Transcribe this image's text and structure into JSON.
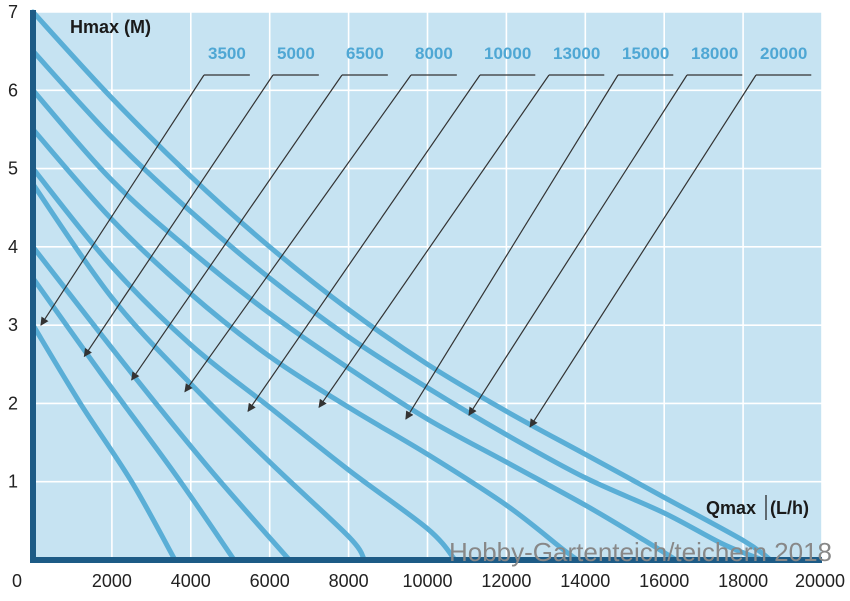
{
  "chart_data": {
    "type": "line",
    "title": "",
    "xlabel": "Qmax",
    "xlabel_unit": "(L/h)",
    "ylabel": "Hmax (M)",
    "xlim": [
      0,
      20000
    ],
    "ylim": [
      0,
      7
    ],
    "x_ticks": [
      0,
      2000,
      4000,
      6000,
      8000,
      10000,
      12000,
      14000,
      16000,
      18000,
      20000
    ],
    "y_ticks": [
      1,
      2,
      3,
      4,
      5,
      6,
      7
    ],
    "grid": true,
    "legend": "top, with leader arrows",
    "colors": {
      "background": "#c6e3f2",
      "curve": "#5aaed6",
      "label": "#4fa7d4",
      "axis": "#1d5b86",
      "grid": "#ffffff",
      "arrow": "#333333"
    },
    "series": [
      {
        "name": "3500",
        "points": [
          [
            0,
            3.0
          ],
          [
            1200,
            2.0
          ],
          [
            2500,
            1.0
          ],
          [
            3600,
            0
          ]
        ]
      },
      {
        "name": "5000",
        "points": [
          [
            0,
            3.6
          ],
          [
            1700,
            2.4
          ],
          [
            3600,
            1.1
          ],
          [
            5100,
            0
          ]
        ]
      },
      {
        "name": "6500",
        "points": [
          [
            0,
            4.0
          ],
          [
            2400,
            2.45
          ],
          [
            4500,
            1.15
          ],
          [
            6500,
            0
          ]
        ]
      },
      {
        "name": "8000",
        "points": [
          [
            0,
            4.8
          ],
          [
            2000,
            3.35
          ],
          [
            4000,
            2.25
          ],
          [
            6000,
            1.25
          ],
          [
            8000,
            0.3
          ],
          [
            8400,
            0
          ]
        ]
      },
      {
        "name": "10000",
        "points": [
          [
            0,
            5.0
          ],
          [
            2000,
            3.75
          ],
          [
            4000,
            2.75
          ],
          [
            6000,
            1.95
          ],
          [
            8000,
            1.15
          ],
          [
            10000,
            0.4
          ],
          [
            10700,
            0
          ]
        ]
      },
      {
        "name": "13000",
        "points": [
          [
            0,
            5.5
          ],
          [
            2000,
            4.35
          ],
          [
            4000,
            3.4
          ],
          [
            6000,
            2.6
          ],
          [
            8000,
            1.95
          ],
          [
            10000,
            1.35
          ],
          [
            12000,
            0.7
          ],
          [
            13400,
            0.15
          ],
          [
            13800,
            0
          ]
        ]
      },
      {
        "name": "15000",
        "points": [
          [
            0,
            6.0
          ],
          [
            2000,
            4.85
          ],
          [
            4000,
            3.95
          ],
          [
            6000,
            3.15
          ],
          [
            8000,
            2.45
          ],
          [
            10000,
            1.8
          ],
          [
            12000,
            1.25
          ],
          [
            14000,
            0.7
          ],
          [
            15500,
            0.25
          ],
          [
            16300,
            0
          ]
        ]
      },
      {
        "name": "18000",
        "points": [
          [
            0,
            6.5
          ],
          [
            2000,
            5.4
          ],
          [
            4000,
            4.45
          ],
          [
            6000,
            3.6
          ],
          [
            8000,
            2.85
          ],
          [
            10000,
            2.2
          ],
          [
            12000,
            1.6
          ],
          [
            14000,
            1.05
          ],
          [
            16000,
            0.6
          ],
          [
            17500,
            0.2
          ],
          [
            18500,
            0
          ]
        ]
      },
      {
        "name": "20000",
        "points": [
          [
            0,
            7.0
          ],
          [
            2000,
            5.9
          ],
          [
            4000,
            4.9
          ],
          [
            6000,
            4.0
          ],
          [
            8000,
            3.2
          ],
          [
            10000,
            2.5
          ],
          [
            12000,
            1.9
          ],
          [
            14000,
            1.35
          ],
          [
            16000,
            0.8
          ],
          [
            18000,
            0.25
          ],
          [
            18700,
            0
          ]
        ]
      }
    ],
    "arrow_targets": [
      [
        200,
        3.0
      ],
      [
        1300,
        2.6
      ],
      [
        2500,
        2.3
      ],
      [
        3850,
        2.15
      ],
      [
        5450,
        1.9
      ],
      [
        7250,
        1.95
      ],
      [
        9450,
        1.8
      ],
      [
        11050,
        1.85
      ],
      [
        12600,
        1.7
      ]
    ]
  },
  "watermark": "Hobby-Gartenteich/teichern 2018"
}
